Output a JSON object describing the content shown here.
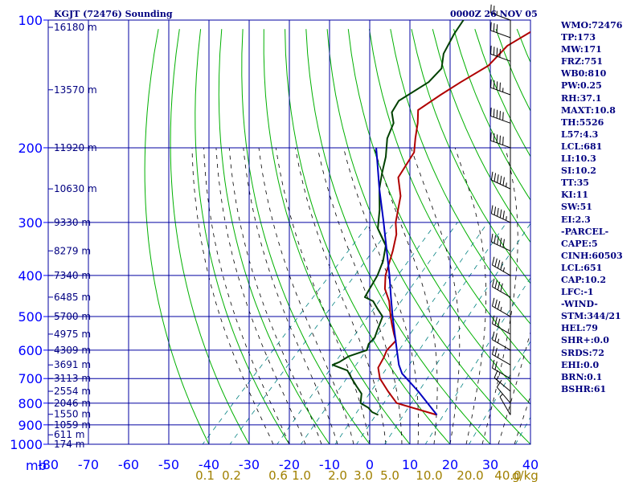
{
  "title": "KGJT (72476) Sounding",
  "time_label": "0000Z 26 NOV 05",
  "indices": [
    "WMO:72476",
    "TP:173",
    "MW:171",
    "FRZ:751",
    "WB0:810",
    "PW:0.25",
    "RH:37.1",
    "MAXT:10.8",
    "TH:5526",
    "L57:4.3",
    "LCL:681",
    "LI:10.3",
    "SI:10.2",
    "TT:35",
    "KI:11",
    "SW:51",
    "EI:2.3",
    "-PARCEL-",
    "CAPE:5",
    "CINH:60503",
    "LCL:651",
    "CAP:10.2",
    "LFC:-1",
    "-WIND-",
    "STM:344/21",
    "HEL:79",
    "SHR+:0.0",
    "SRDS:72",
    "EHI:0.0",
    "BRN:0.1",
    "BSHR:61"
  ],
  "colors": {
    "axes": "#0000ff",
    "grid": "#0000a0",
    "temperature": "#b00000",
    "dewpoint": "#004000",
    "parcel": "#0000c0",
    "dry_adiabat": "#00b000",
    "moist_adiabat": "#000000",
    "mixing_ratio": "#008080",
    "mixing_label": "#a08000",
    "wind": "#000000"
  },
  "chart_data": {
    "type": "line",
    "title": "KGJT (72476) Sounding",
    "pressure_ticks": [
      100,
      200,
      300,
      400,
      500,
      600,
      700,
      800,
      900,
      1000
    ],
    "pressure_unit_label": "mb",
    "temperature_ticks": [
      -80,
      -70,
      -60,
      -50,
      -40,
      -30,
      -20,
      -10,
      0,
      10,
      20,
      30,
      40
    ],
    "mixing_ratio_labels": [
      "0.1",
      "0.2",
      "0.6",
      "1.0",
      "2.0",
      "3.0",
      "5.0",
      "10.0",
      "20.0",
      "40.0"
    ],
    "mixing_ratio_unit": "g/kg",
    "height_labels": [
      {
        "p": 104,
        "h": "16180 m"
      },
      {
        "p": 146,
        "h": "13570 m"
      },
      {
        "p": 200,
        "h": "11920 m"
      },
      {
        "p": 250,
        "h": "10630 m"
      },
      {
        "p": 300,
        "h": "9330 m"
      },
      {
        "p": 350,
        "h": "8279 m"
      },
      {
        "p": 400,
        "h": "7340 m"
      },
      {
        "p": 450,
        "h": "6485 m"
      },
      {
        "p": 500,
        "h": "5700 m"
      },
      {
        "p": 550,
        "h": "4975 m"
      },
      {
        "p": 600,
        "h": "4309 m"
      },
      {
        "p": 650,
        "h": "3691 m"
      },
      {
        "p": 700,
        "h": "3113 m"
      },
      {
        "p": 750,
        "h": "2554 m"
      },
      {
        "p": 800,
        "h": "2046 m"
      },
      {
        "p": 850,
        "h": "1550 m"
      },
      {
        "p": 900,
        "h": "1059 m"
      },
      {
        "p": 950,
        "h": "611 m"
      },
      {
        "p": 1000,
        "h": "174 m"
      }
    ],
    "series": [
      {
        "points": [
          [
            853,
            9.8
          ],
          [
            800,
            -3
          ],
          [
            750,
            -8
          ],
          [
            700,
            -13
          ],
          [
            660,
            -16
          ],
          [
            625,
            -17
          ],
          [
            600,
            -18
          ],
          [
            570,
            -18
          ],
          [
            550,
            -20
          ],
          [
            520,
            -23
          ],
          [
            500,
            -25
          ],
          [
            460,
            -29
          ],
          [
            430,
            -33
          ],
          [
            400,
            -36
          ],
          [
            350,
            -40
          ],
          [
            320,
            -43
          ],
          [
            300,
            -46
          ],
          [
            260,
            -51
          ],
          [
            235,
            -56
          ],
          [
            205,
            -58
          ],
          [
            190,
            -61
          ],
          [
            175,
            -64
          ],
          [
            163,
            -67
          ],
          [
            150,
            -65
          ],
          [
            140,
            -63
          ],
          [
            128,
            -60
          ],
          [
            115,
            -60
          ],
          [
            105,
            -57
          ],
          [
            100,
            -56
          ]
        ]
      },
      {
        "points": [
          [
            853,
            -4.8
          ],
          [
            840,
            -7
          ],
          [
            820,
            -9
          ],
          [
            800,
            -12
          ],
          [
            760,
            -14
          ],
          [
            730,
            -17
          ],
          [
            700,
            -20
          ],
          [
            670,
            -23
          ],
          [
            650,
            -28
          ],
          [
            640,
            -27
          ],
          [
            620,
            -26
          ],
          [
            600,
            -23
          ],
          [
            580,
            -24
          ],
          [
            560,
            -24
          ],
          [
            540,
            -25
          ],
          [
            500,
            -27
          ],
          [
            480,
            -30
          ],
          [
            460,
            -33
          ],
          [
            450,
            -36
          ],
          [
            400,
            -38
          ],
          [
            370,
            -40
          ],
          [
            340,
            -43
          ],
          [
            310,
            -49
          ],
          [
            280,
            -53
          ],
          [
            250,
            -58
          ],
          [
            230,
            -61
          ],
          [
            210,
            -64
          ],
          [
            190,
            -68
          ],
          [
            175,
            -70
          ],
          [
            165,
            -73
          ],
          [
            155,
            -74
          ],
          [
            140,
            -71
          ],
          [
            130,
            -71
          ],
          [
            120,
            -74
          ],
          [
            108,
            -76
          ],
          [
            100,
            -77
          ]
        ]
      },
      {
        "points": [
          [
            853,
            9.8
          ],
          [
            750,
            -0.5
          ],
          [
            681,
            -8.7
          ],
          [
            650,
            -11.5
          ],
          [
            600,
            -15.5
          ],
          [
            550,
            -19.8
          ],
          [
            500,
            -24.5
          ],
          [
            450,
            -29.5
          ],
          [
            400,
            -35
          ],
          [
            350,
            -41.5
          ],
          [
            300,
            -49
          ],
          [
            250,
            -58
          ],
          [
            200,
            -68.5
          ]
        ]
      }
    ],
    "wind_barbs": [
      {
        "p": 853,
        "dir": 330,
        "spd": 5
      },
      {
        "p": 800,
        "dir": 320,
        "spd": 10
      },
      {
        "p": 750,
        "dir": 310,
        "spd": 15
      },
      {
        "p": 700,
        "dir": 300,
        "spd": 20
      },
      {
        "p": 650,
        "dir": 300,
        "spd": 25
      },
      {
        "p": 600,
        "dir": 300,
        "spd": 25
      },
      {
        "p": 550,
        "dir": 300,
        "spd": 30
      },
      {
        "p": 500,
        "dir": 300,
        "spd": 35
      },
      {
        "p": 450,
        "dir": 300,
        "spd": 40
      },
      {
        "p": 400,
        "dir": 300,
        "spd": 45
      },
      {
        "p": 350,
        "dir": 295,
        "spd": 50
      },
      {
        "p": 300,
        "dir": 295,
        "spd": 55
      },
      {
        "p": 250,
        "dir": 295,
        "spd": 55
      },
      {
        "p": 200,
        "dir": 290,
        "spd": 50
      },
      {
        "p": 175,
        "dir": 290,
        "spd": 50
      },
      {
        "p": 150,
        "dir": 290,
        "spd": 45
      },
      {
        "p": 125,
        "dir": 290,
        "spd": 40
      },
      {
        "p": 110,
        "dir": 290,
        "spd": 30
      },
      {
        "p": 100,
        "dir": 290,
        "spd": 25
      }
    ]
  }
}
